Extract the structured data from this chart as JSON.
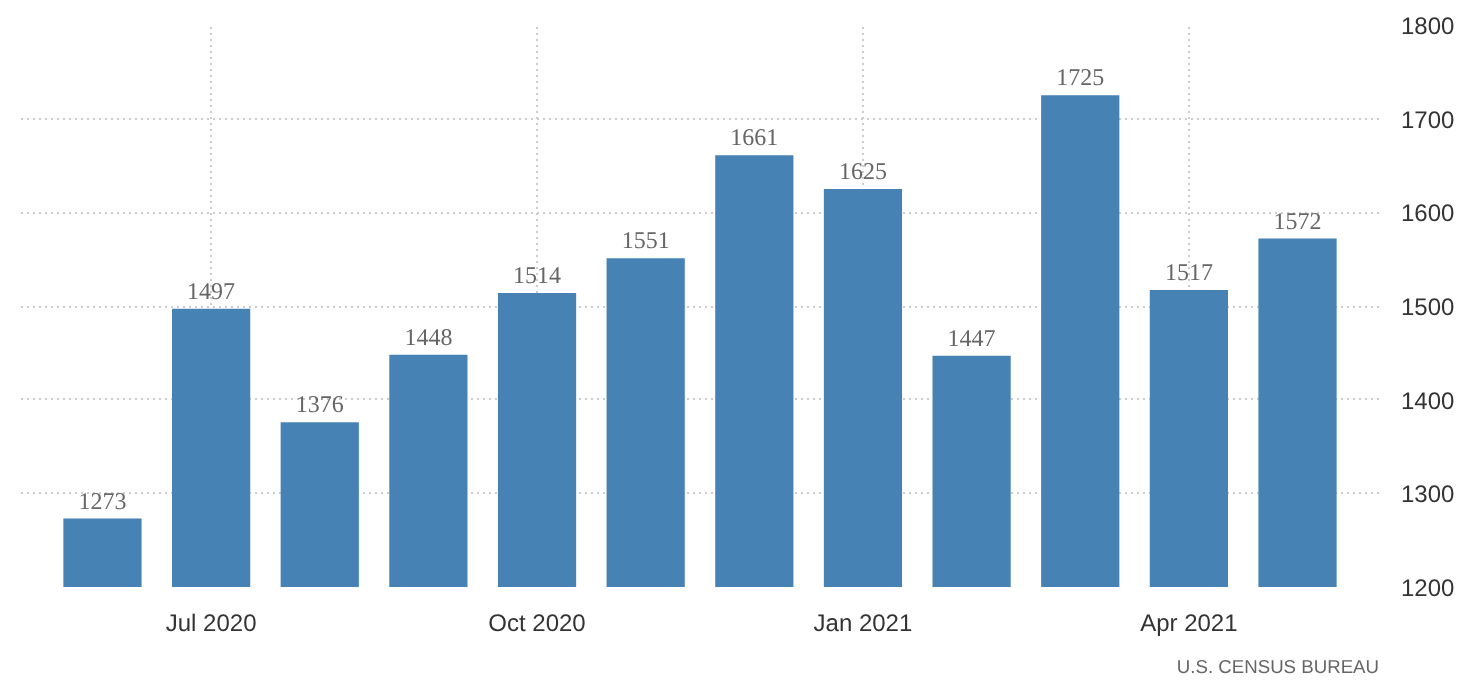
{
  "chart_data": {
    "type": "bar",
    "categories": [
      null,
      "Jul 2020",
      null,
      null,
      "Oct 2020",
      null,
      null,
      "Jan 2021",
      null,
      null,
      "Apr 2021",
      null
    ],
    "values": [
      1273,
      1497,
      1376,
      1448,
      1514,
      1551,
      1661,
      1625,
      1447,
      1725,
      1517,
      1572
    ],
    "color": "#4682b4",
    "ylim": [
      1200,
      1800
    ],
    "yticks": [
      1200,
      1300,
      1400,
      1500,
      1600,
      1700,
      1800
    ],
    "grid": true,
    "data_labels": true,
    "annotations": [
      "U.S. CENSUS BUREAU"
    ]
  }
}
